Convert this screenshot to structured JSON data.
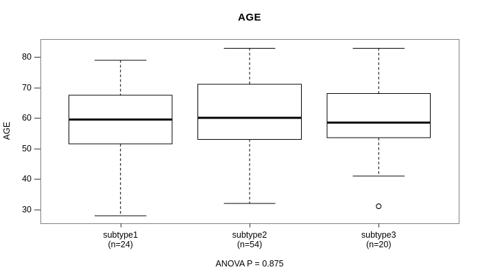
{
  "chart_data": {
    "type": "boxplot",
    "title": "AGE",
    "xlabel": "",
    "ylabel": "AGE",
    "footer": "ANOVA P = 0.875",
    "categories": [
      "subtype1",
      "subtype2",
      "subtype3"
    ],
    "category_sublabels": [
      "(n=24)",
      "(n=54)",
      "(n=20)"
    ],
    "yticks": [
      30,
      40,
      50,
      60,
      70,
      80
    ],
    "ylim": [
      25.4,
      85.9
    ],
    "grid": false,
    "legend": "none",
    "series": [
      {
        "name": "subtype1",
        "n": 24,
        "whisker_low": 28,
        "q1": 51.5,
        "median": 59.5,
        "q3": 67.5,
        "whisker_high": 79,
        "outliers": []
      },
      {
        "name": "subtype2",
        "n": 54,
        "whisker_low": 32,
        "q1": 53,
        "median": 60,
        "q3": 71,
        "whisker_high": 83,
        "outliers": []
      },
      {
        "name": "subtype3",
        "n": 20,
        "whisker_low": 41,
        "q1": 53.5,
        "median": 58.5,
        "q3": 68,
        "whisker_high": 83,
        "outliers": [
          31
        ]
      }
    ],
    "colors": {
      "background": "#ffffff",
      "frame": "#808080",
      "box_border": "#000000",
      "box_fill": "#ffffff",
      "median": "#000000",
      "whisker": "#000000",
      "tick": "#333333",
      "text": "#000000"
    }
  }
}
